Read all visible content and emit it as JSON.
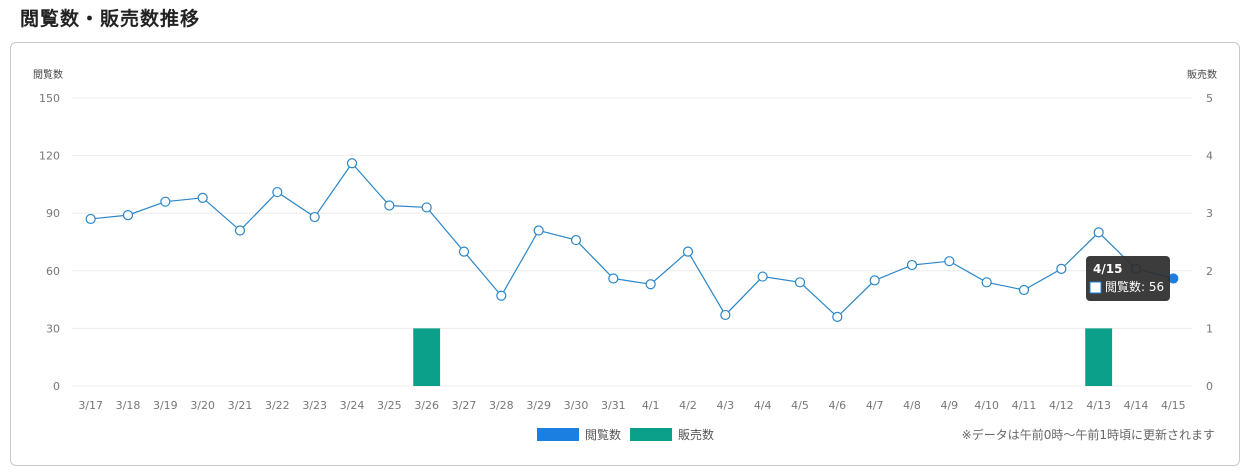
{
  "page": {
    "title": "閲覧数・販売数推移",
    "note": "※データは午前0時〜午前1時頃に更新されます"
  },
  "colors": {
    "views": "#1a7fe0",
    "views_line": "#2a86c8",
    "sales": "#0aa08a",
    "grid": "#ececec",
    "tooltip_bg": "#2b2b2b"
  },
  "chart_data": {
    "type": "bar+line",
    "categories": [
      "3/17",
      "3/18",
      "3/19",
      "3/20",
      "3/21",
      "3/22",
      "3/23",
      "3/24",
      "3/25",
      "3/26",
      "3/27",
      "3/28",
      "3/29",
      "3/30",
      "3/31",
      "4/1",
      "4/2",
      "4/3",
      "4/4",
      "4/5",
      "4/6",
      "4/7",
      "4/8",
      "4/9",
      "4/10",
      "4/11",
      "4/12",
      "4/13",
      "4/14",
      "4/15"
    ],
    "series": [
      {
        "name": "閲覧数",
        "type": "line",
        "axis": "left",
        "values": [
          87,
          89,
          96,
          98,
          81,
          101,
          88,
          116,
          94,
          93,
          70,
          47,
          81,
          76,
          56,
          53,
          70,
          37,
          57,
          54,
          36,
          55,
          63,
          65,
          54,
          50,
          61,
          80,
          61,
          56
        ]
      },
      {
        "name": "販売数",
        "type": "bar",
        "axis": "right",
        "values": [
          0,
          0,
          0,
          0,
          0,
          0,
          0,
          0,
          0,
          1,
          0,
          0,
          0,
          0,
          0,
          0,
          0,
          0,
          0,
          0,
          0,
          0,
          0,
          0,
          0,
          0,
          0,
          1,
          0,
          0
        ]
      }
    ],
    "y_left": {
      "label": "閲覧数",
      "range": [
        0,
        150
      ],
      "ticks": [
        "0",
        "30",
        "60",
        "90",
        "120",
        "150"
      ]
    },
    "y_right": {
      "label": "販売数",
      "range": [
        0,
        5
      ],
      "ticks": [
        "0",
        "1",
        "2",
        "3",
        "4",
        "5"
      ]
    },
    "legend": {
      "position": "bottom-center",
      "items": [
        "閲覧数",
        "販売数"
      ]
    },
    "grid": true,
    "tooltip": {
      "index": 29,
      "title": "4/15",
      "label": "閲覧数: 56"
    }
  }
}
